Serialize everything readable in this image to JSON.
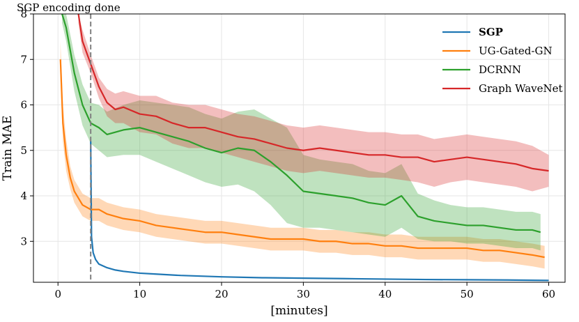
{
  "chart_data": {
    "type": "line",
    "xlabel": "[minutes]",
    "ylabel": "Train MAE",
    "xlim": [
      -3,
      62
    ],
    "ylim": [
      2.1,
      8
    ],
    "xticks": [
      0,
      10,
      20,
      30,
      40,
      50,
      60
    ],
    "yticks": [
      3,
      4,
      5,
      6,
      7,
      8
    ],
    "grid": true,
    "legend_position": "top-right",
    "annotation": {
      "text": "SGP encoding done",
      "x": 4
    },
    "series": [
      {
        "name": "SGP",
        "color": "#1f77b4",
        "bold": true,
        "x": [
          4,
          4.1,
          4.3,
          4.6,
          5,
          6,
          7,
          8,
          10,
          12,
          15,
          20,
          25,
          30,
          35,
          40,
          45,
          50,
          55,
          60
        ],
        "y": [
          5.2,
          3.1,
          2.75,
          2.6,
          2.5,
          2.42,
          2.37,
          2.34,
          2.3,
          2.28,
          2.25,
          2.22,
          2.2,
          2.19,
          2.18,
          2.17,
          2.16,
          2.155,
          2.15,
          2.14
        ]
      },
      {
        "name": "UG-Gated-GN",
        "color": "#ff7f0e",
        "x": [
          0.3,
          0.6,
          1,
          1.5,
          2,
          3,
          4,
          5,
          6,
          8,
          10,
          12,
          14,
          16,
          18,
          20,
          22,
          24,
          26,
          28,
          30,
          32,
          34,
          36,
          38,
          40,
          42,
          44,
          46,
          48,
          50,
          52,
          54,
          56,
          58,
          59.5
        ],
        "y": [
          7.0,
          5.6,
          4.9,
          4.4,
          4.1,
          3.8,
          3.7,
          3.7,
          3.6,
          3.5,
          3.45,
          3.35,
          3.3,
          3.25,
          3.2,
          3.2,
          3.15,
          3.1,
          3.05,
          3.05,
          3.05,
          3.0,
          3.0,
          2.95,
          2.95,
          2.9,
          2.9,
          2.85,
          2.85,
          2.85,
          2.85,
          2.8,
          2.8,
          2.75,
          2.7,
          2.65
        ],
        "lower": [
          6.6,
          5.2,
          4.55,
          4.15,
          3.85,
          3.55,
          3.45,
          3.45,
          3.35,
          3.25,
          3.2,
          3.1,
          3.05,
          3.0,
          2.95,
          2.95,
          2.9,
          2.85,
          2.8,
          2.8,
          2.8,
          2.75,
          2.75,
          2.7,
          2.7,
          2.65,
          2.65,
          2.6,
          2.6,
          2.6,
          2.6,
          2.55,
          2.55,
          2.5,
          2.45,
          2.4
        ],
        "upper": [
          7.4,
          6.0,
          5.25,
          4.65,
          4.35,
          4.05,
          3.95,
          3.95,
          3.85,
          3.75,
          3.7,
          3.6,
          3.55,
          3.5,
          3.45,
          3.45,
          3.4,
          3.35,
          3.3,
          3.3,
          3.3,
          3.25,
          3.25,
          3.2,
          3.2,
          3.15,
          3.15,
          3.1,
          3.1,
          3.1,
          3.1,
          3.05,
          3.05,
          3.0,
          2.95,
          2.9
        ]
      },
      {
        "name": "DCRNN",
        "color": "#2ca02c",
        "x": [
          0.5,
          1,
          2,
          3,
          4,
          5,
          6,
          8,
          10,
          12,
          14,
          16,
          18,
          20,
          22,
          24,
          26,
          28,
          30,
          32,
          34,
          36,
          38,
          40,
          42,
          44,
          46,
          48,
          50,
          52,
          54,
          56,
          58,
          59
        ],
        "y": [
          8.0,
          7.7,
          6.7,
          6.0,
          5.6,
          5.5,
          5.35,
          5.45,
          5.5,
          5.4,
          5.3,
          5.2,
          5.05,
          4.95,
          5.05,
          5.0,
          4.75,
          4.45,
          4.1,
          4.05,
          4.0,
          3.95,
          3.85,
          3.8,
          4.0,
          3.55,
          3.45,
          3.4,
          3.35,
          3.35,
          3.3,
          3.25,
          3.25,
          3.2
        ],
        "lower": [
          7.8,
          7.4,
          6.3,
          5.55,
          5.15,
          5.0,
          4.85,
          4.9,
          4.9,
          4.75,
          4.6,
          4.45,
          4.3,
          4.2,
          4.25,
          4.1,
          3.8,
          3.4,
          3.3,
          3.3,
          3.25,
          3.2,
          3.15,
          3.1,
          3.3,
          3.05,
          3.0,
          3.0,
          2.95,
          2.95,
          2.9,
          2.85,
          2.85,
          2.8
        ],
        "upper": [
          8.0,
          8.0,
          7.1,
          6.45,
          6.05,
          6.0,
          5.85,
          6.0,
          6.1,
          6.05,
          6.0,
          5.95,
          5.8,
          5.7,
          5.85,
          5.9,
          5.7,
          5.5,
          4.9,
          4.8,
          4.75,
          4.7,
          4.55,
          4.5,
          4.7,
          4.05,
          3.9,
          3.8,
          3.75,
          3.75,
          3.7,
          3.65,
          3.65,
          3.6
        ]
      },
      {
        "name": "Graph WaveNet",
        "color": "#d62728",
        "x": [
          2.5,
          3,
          4,
          5,
          6,
          7,
          8,
          10,
          12,
          14,
          16,
          18,
          20,
          22,
          24,
          26,
          28,
          30,
          32,
          34,
          36,
          38,
          40,
          42,
          44,
          46,
          48,
          50,
          52,
          54,
          56,
          58,
          60
        ],
        "y": [
          8.0,
          7.4,
          6.9,
          6.4,
          6.05,
          5.9,
          5.95,
          5.8,
          5.75,
          5.6,
          5.5,
          5.5,
          5.4,
          5.3,
          5.25,
          5.15,
          5.05,
          5.0,
          5.05,
          5.0,
          4.95,
          4.9,
          4.9,
          4.85,
          4.85,
          4.75,
          4.8,
          4.85,
          4.8,
          4.75,
          4.7,
          4.6,
          4.55
        ],
        "lower": [
          7.8,
          7.15,
          6.7,
          6.15,
          5.75,
          5.6,
          5.6,
          5.4,
          5.35,
          5.15,
          5.05,
          5.05,
          4.95,
          4.85,
          4.75,
          4.65,
          4.55,
          4.5,
          4.55,
          4.5,
          4.45,
          4.4,
          4.4,
          4.35,
          4.3,
          4.2,
          4.3,
          4.35,
          4.3,
          4.25,
          4.2,
          4.1,
          4.2
        ],
        "upper": [
          8.0,
          7.65,
          7.1,
          6.6,
          6.35,
          6.25,
          6.3,
          6.2,
          6.2,
          6.05,
          6.0,
          6.0,
          5.9,
          5.8,
          5.75,
          5.65,
          5.55,
          5.5,
          5.55,
          5.5,
          5.45,
          5.4,
          5.4,
          5.35,
          5.35,
          5.25,
          5.3,
          5.35,
          5.3,
          5.25,
          5.2,
          5.1,
          4.9
        ]
      }
    ]
  }
}
